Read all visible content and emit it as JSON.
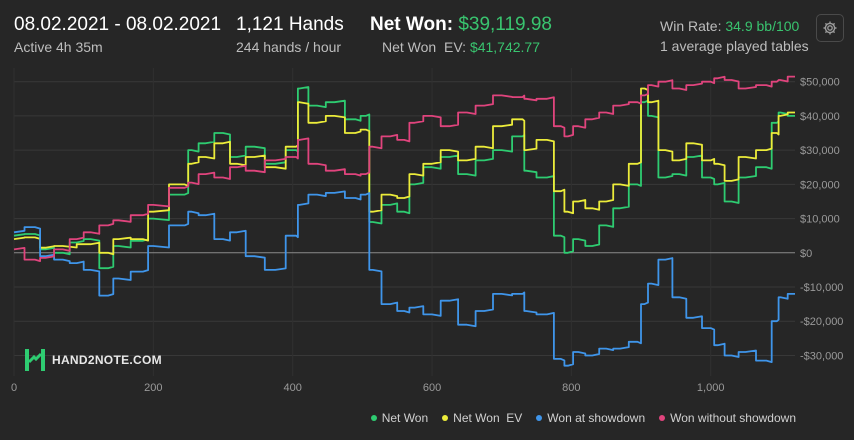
{
  "header": {
    "date_range": "08.02.2021 - 08.02.2021",
    "active": "Active 4h 35m",
    "hands": "1,121 Hands",
    "hands_per_hour": "244 hands / hour",
    "net_won_label": "Net Won:",
    "net_won_value": "$39,119.98",
    "net_won_ev_label": "Net Won  EV:",
    "net_won_ev_value": "$41,742.77",
    "win_rate_label": "Win Rate:",
    "win_rate_value": "34.9 bb/100",
    "tables": "1 average played tables"
  },
  "logo_text": "HAND2NOTE.COM",
  "icons": {
    "settings": "gear-icon",
    "logo": "hand2note-logo-icon"
  },
  "chart_data": {
    "type": "line",
    "title": "",
    "xlabel": "",
    "ylabel": "",
    "xlim": [
      0,
      1121
    ],
    "ylim": [
      -36000,
      54000
    ],
    "x_ticks": [
      0,
      200,
      400,
      600,
      800,
      1000
    ],
    "x_tick_labels": [
      "0",
      "200",
      "400",
      "600",
      "800",
      "1,000"
    ],
    "y_ticks": [
      -30000,
      -20000,
      -10000,
      0,
      10000,
      20000,
      30000,
      40000,
      50000
    ],
    "y_tick_labels": [
      "-$30,000",
      "-$20,000",
      "-$10,000",
      "$0",
      "$10,000",
      "$20,000",
      "$30,000",
      "$40,000",
      "$50,000"
    ],
    "grid": true,
    "legend_position": "bottom-right",
    "series": [
      {
        "name": "Net Won",
        "color": "#2ecc71",
        "points": [
          [
            0,
            5000
          ],
          [
            30,
            5500
          ],
          [
            45,
            1000
          ],
          [
            70,
            0
          ],
          [
            90,
            3000
          ],
          [
            110,
            4000
          ],
          [
            135,
            -4500
          ],
          [
            150,
            2000
          ],
          [
            185,
            3500
          ],
          [
            200,
            10000
          ],
          [
            245,
            17000
          ],
          [
            255,
            30000
          ],
          [
            275,
            32000
          ],
          [
            300,
            35000
          ],
          [
            320,
            28000
          ],
          [
            345,
            31000
          ],
          [
            375,
            26000
          ],
          [
            405,
            30000
          ],
          [
            410,
            48000
          ],
          [
            435,
            43000
          ],
          [
            460,
            44000
          ],
          [
            490,
            39000
          ],
          [
            505,
            40000
          ],
          [
            515,
            9000
          ],
          [
            540,
            14000
          ],
          [
            560,
            12000
          ],
          [
            575,
            20000
          ],
          [
            600,
            25000
          ],
          [
            625,
            28000
          ],
          [
            650,
            23000
          ],
          [
            675,
            27000
          ],
          [
            700,
            30000
          ],
          [
            730,
            34000
          ],
          [
            735,
            24000
          ],
          [
            765,
            22000
          ],
          [
            785,
            5000
          ],
          [
            795,
            0
          ],
          [
            810,
            4000
          ],
          [
            830,
            2000
          ],
          [
            850,
            8000
          ],
          [
            870,
            13000
          ],
          [
            895,
            20000
          ],
          [
            905,
            44000
          ],
          [
            915,
            40000
          ],
          [
            935,
            22000
          ],
          [
            955,
            23000
          ],
          [
            975,
            28000
          ],
          [
            1000,
            22000
          ],
          [
            1010,
            20000
          ],
          [
            1030,
            15000
          ],
          [
            1050,
            22000
          ],
          [
            1080,
            25000
          ],
          [
            1095,
            38000
          ],
          [
            1100,
            41000
          ],
          [
            1121,
            40000
          ]
        ]
      },
      {
        "name": "Net Won  EV",
        "color": "#ecec3a",
        "points": [
          [
            0,
            4000
          ],
          [
            30,
            4500
          ],
          [
            45,
            1500
          ],
          [
            70,
            2000
          ],
          [
            110,
            2500
          ],
          [
            135,
            0
          ],
          [
            150,
            4000
          ],
          [
            185,
            4000
          ],
          [
            200,
            12000
          ],
          [
            245,
            20000
          ],
          [
            255,
            26000
          ],
          [
            275,
            28000
          ],
          [
            300,
            32000
          ],
          [
            320,
            26000
          ],
          [
            345,
            28000
          ],
          [
            375,
            25000
          ],
          [
            405,
            31000
          ],
          [
            410,
            44000
          ],
          [
            435,
            38000
          ],
          [
            460,
            40000
          ],
          [
            490,
            35000
          ],
          [
            505,
            36000
          ],
          [
            515,
            12000
          ],
          [
            540,
            17000
          ],
          [
            560,
            16000
          ],
          [
            575,
            23000
          ],
          [
            600,
            26000
          ],
          [
            625,
            30000
          ],
          [
            650,
            27000
          ],
          [
            675,
            31000
          ],
          [
            700,
            37000
          ],
          [
            730,
            39000
          ],
          [
            735,
            30000
          ],
          [
            765,
            33000
          ],
          [
            785,
            18000
          ],
          [
            795,
            12000
          ],
          [
            810,
            15000
          ],
          [
            830,
            13000
          ],
          [
            850,
            15000
          ],
          [
            870,
            20000
          ],
          [
            895,
            26000
          ],
          [
            905,
            48000
          ],
          [
            915,
            44000
          ],
          [
            935,
            30000
          ],
          [
            955,
            27000
          ],
          [
            975,
            32000
          ],
          [
            1000,
            27000
          ],
          [
            1010,
            26000
          ],
          [
            1030,
            21000
          ],
          [
            1050,
            28000
          ],
          [
            1080,
            30000
          ],
          [
            1095,
            35000
          ],
          [
            1100,
            40000
          ],
          [
            1121,
            41000
          ]
        ]
      },
      {
        "name": "Won at showdown",
        "color": "#3f95ea",
        "points": [
          [
            0,
            6000
          ],
          [
            30,
            7500
          ],
          [
            45,
            -1000
          ],
          [
            70,
            -2000
          ],
          [
            90,
            -3000
          ],
          [
            110,
            -5000
          ],
          [
            135,
            -12500
          ],
          [
            150,
            -7500
          ],
          [
            185,
            -5500
          ],
          [
            200,
            2000
          ],
          [
            245,
            8000
          ],
          [
            255,
            12000
          ],
          [
            275,
            11000
          ],
          [
            300,
            4000
          ],
          [
            320,
            6000
          ],
          [
            345,
            -1000
          ],
          [
            375,
            -5000
          ],
          [
            405,
            5000
          ],
          [
            410,
            14000
          ],
          [
            435,
            17000
          ],
          [
            460,
            17500
          ],
          [
            490,
            16000
          ],
          [
            505,
            17000
          ],
          [
            515,
            -5000
          ],
          [
            540,
            -15000
          ],
          [
            560,
            -17000
          ],
          [
            575,
            -16000
          ],
          [
            600,
            -18000
          ],
          [
            625,
            -14000
          ],
          [
            650,
            -21000
          ],
          [
            675,
            -17000
          ],
          [
            700,
            -12000
          ],
          [
            730,
            -12000
          ],
          [
            735,
            -17000
          ],
          [
            765,
            -18000
          ],
          [
            785,
            -31000
          ],
          [
            795,
            -33000
          ],
          [
            810,
            -29000
          ],
          [
            830,
            -30000
          ],
          [
            850,
            -28000
          ],
          [
            870,
            -28000
          ],
          [
            895,
            -26000
          ],
          [
            905,
            -15000
          ],
          [
            915,
            -9000
          ],
          [
            935,
            -2000
          ],
          [
            955,
            -13000
          ],
          [
            975,
            -19000
          ],
          [
            1000,
            -22000
          ],
          [
            1010,
            -27000
          ],
          [
            1030,
            -30000
          ],
          [
            1050,
            -29000
          ],
          [
            1080,
            -31500
          ],
          [
            1095,
            -20000
          ],
          [
            1100,
            -13000
          ],
          [
            1121,
            -12000
          ]
        ]
      },
      {
        "name": "Won without showdown",
        "color": "#e0447d",
        "points": [
          [
            0,
            1000
          ],
          [
            30,
            -2000
          ],
          [
            45,
            -1500
          ],
          [
            70,
            1000
          ],
          [
            90,
            4000
          ],
          [
            110,
            6000
          ],
          [
            135,
            8000
          ],
          [
            150,
            9500
          ],
          [
            185,
            11000
          ],
          [
            200,
            14000
          ],
          [
            245,
            19000
          ],
          [
            255,
            20500
          ],
          [
            275,
            23000
          ],
          [
            300,
            22000
          ],
          [
            320,
            25000
          ],
          [
            345,
            24000
          ],
          [
            375,
            27000
          ],
          [
            405,
            28000
          ],
          [
            410,
            33000
          ],
          [
            435,
            26000
          ],
          [
            460,
            24000
          ],
          [
            490,
            23000
          ],
          [
            505,
            23000
          ],
          [
            515,
            31000
          ],
          [
            540,
            34000
          ],
          [
            560,
            33000
          ],
          [
            575,
            38000
          ],
          [
            600,
            40000
          ],
          [
            625,
            37000
          ],
          [
            650,
            41000
          ],
          [
            675,
            43000
          ],
          [
            700,
            46000
          ],
          [
            730,
            45500
          ],
          [
            735,
            45000
          ],
          [
            765,
            45000
          ],
          [
            785,
            37000
          ],
          [
            795,
            34000
          ],
          [
            810,
            37000
          ],
          [
            830,
            39000
          ],
          [
            850,
            41000
          ],
          [
            870,
            43000
          ],
          [
            895,
            44000
          ],
          [
            905,
            46000
          ],
          [
            915,
            49000
          ],
          [
            935,
            50000
          ],
          [
            955,
            48000
          ],
          [
            975,
            49000
          ],
          [
            1000,
            50000
          ],
          [
            1010,
            51000
          ],
          [
            1030,
            50500
          ],
          [
            1050,
            48000
          ],
          [
            1080,
            49000
          ],
          [
            1095,
            50000
          ],
          [
            1100,
            50500
          ],
          [
            1121,
            51500
          ]
        ]
      }
    ]
  }
}
